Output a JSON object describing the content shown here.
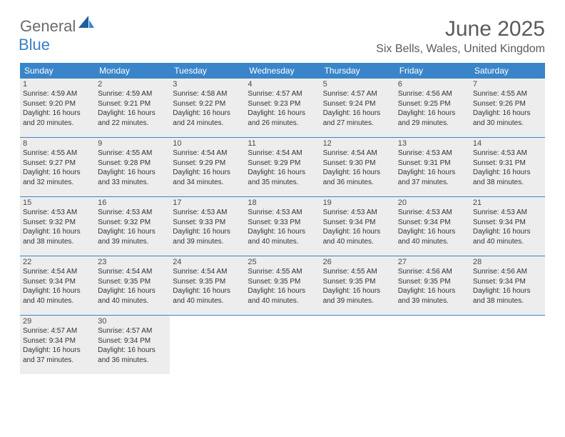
{
  "brand": {
    "part1": "General",
    "part2": "Blue"
  },
  "title": "June 2025",
  "location": "Six Bells, Wales, United Kingdom",
  "colors": {
    "header_bg": "#3a85c9",
    "header_text": "#ffffff",
    "shaded_bg": "#ededed",
    "rule": "#3a85c9",
    "logo_gray": "#6b6b6b",
    "logo_blue": "#3a7fc4",
    "title_color": "#5a5a5a"
  },
  "weekdays": [
    "Sunday",
    "Monday",
    "Tuesday",
    "Wednesday",
    "Thursday",
    "Friday",
    "Saturday"
  ],
  "weeks": [
    [
      {
        "n": "1",
        "sr": "4:59 AM",
        "ss": "9:20 PM",
        "dl": "16 hours and 20 minutes."
      },
      {
        "n": "2",
        "sr": "4:59 AM",
        "ss": "9:21 PM",
        "dl": "16 hours and 22 minutes."
      },
      {
        "n": "3",
        "sr": "4:58 AM",
        "ss": "9:22 PM",
        "dl": "16 hours and 24 minutes."
      },
      {
        "n": "4",
        "sr": "4:57 AM",
        "ss": "9:23 PM",
        "dl": "16 hours and 26 minutes."
      },
      {
        "n": "5",
        "sr": "4:57 AM",
        "ss": "9:24 PM",
        "dl": "16 hours and 27 minutes."
      },
      {
        "n": "6",
        "sr": "4:56 AM",
        "ss": "9:25 PM",
        "dl": "16 hours and 29 minutes."
      },
      {
        "n": "7",
        "sr": "4:55 AM",
        "ss": "9:26 PM",
        "dl": "16 hours and 30 minutes."
      }
    ],
    [
      {
        "n": "8",
        "sr": "4:55 AM",
        "ss": "9:27 PM",
        "dl": "16 hours and 32 minutes."
      },
      {
        "n": "9",
        "sr": "4:55 AM",
        "ss": "9:28 PM",
        "dl": "16 hours and 33 minutes."
      },
      {
        "n": "10",
        "sr": "4:54 AM",
        "ss": "9:29 PM",
        "dl": "16 hours and 34 minutes."
      },
      {
        "n": "11",
        "sr": "4:54 AM",
        "ss": "9:29 PM",
        "dl": "16 hours and 35 minutes."
      },
      {
        "n": "12",
        "sr": "4:54 AM",
        "ss": "9:30 PM",
        "dl": "16 hours and 36 minutes."
      },
      {
        "n": "13",
        "sr": "4:53 AM",
        "ss": "9:31 PM",
        "dl": "16 hours and 37 minutes."
      },
      {
        "n": "14",
        "sr": "4:53 AM",
        "ss": "9:31 PM",
        "dl": "16 hours and 38 minutes."
      }
    ],
    [
      {
        "n": "15",
        "sr": "4:53 AM",
        "ss": "9:32 PM",
        "dl": "16 hours and 38 minutes."
      },
      {
        "n": "16",
        "sr": "4:53 AM",
        "ss": "9:32 PM",
        "dl": "16 hours and 39 minutes."
      },
      {
        "n": "17",
        "sr": "4:53 AM",
        "ss": "9:33 PM",
        "dl": "16 hours and 39 minutes."
      },
      {
        "n": "18",
        "sr": "4:53 AM",
        "ss": "9:33 PM",
        "dl": "16 hours and 40 minutes."
      },
      {
        "n": "19",
        "sr": "4:53 AM",
        "ss": "9:34 PM",
        "dl": "16 hours and 40 minutes."
      },
      {
        "n": "20",
        "sr": "4:53 AM",
        "ss": "9:34 PM",
        "dl": "16 hours and 40 minutes."
      },
      {
        "n": "21",
        "sr": "4:53 AM",
        "ss": "9:34 PM",
        "dl": "16 hours and 40 minutes."
      }
    ],
    [
      {
        "n": "22",
        "sr": "4:54 AM",
        "ss": "9:34 PM",
        "dl": "16 hours and 40 minutes."
      },
      {
        "n": "23",
        "sr": "4:54 AM",
        "ss": "9:35 PM",
        "dl": "16 hours and 40 minutes."
      },
      {
        "n": "24",
        "sr": "4:54 AM",
        "ss": "9:35 PM",
        "dl": "16 hours and 40 minutes."
      },
      {
        "n": "25",
        "sr": "4:55 AM",
        "ss": "9:35 PM",
        "dl": "16 hours and 40 minutes."
      },
      {
        "n": "26",
        "sr": "4:55 AM",
        "ss": "9:35 PM",
        "dl": "16 hours and 39 minutes."
      },
      {
        "n": "27",
        "sr": "4:56 AM",
        "ss": "9:35 PM",
        "dl": "16 hours and 39 minutes."
      },
      {
        "n": "28",
        "sr": "4:56 AM",
        "ss": "9:34 PM",
        "dl": "16 hours and 38 minutes."
      }
    ],
    [
      {
        "n": "29",
        "sr": "4:57 AM",
        "ss": "9:34 PM",
        "dl": "16 hours and 37 minutes."
      },
      {
        "n": "30",
        "sr": "4:57 AM",
        "ss": "9:34 PM",
        "dl": "16 hours and 36 minutes."
      },
      null,
      null,
      null,
      null,
      null
    ]
  ],
  "labels": {
    "sunrise": "Sunrise: ",
    "sunset": "Sunset: ",
    "daylight": "Daylight: "
  }
}
